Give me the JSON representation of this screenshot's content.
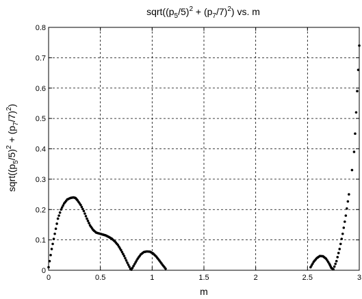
{
  "chart_data": {
    "type": "scatter",
    "title": {
      "base": "sqrt((p",
      "s1": "5",
      "m1": "/5)",
      "e1": "2",
      "m2": " + (p",
      "s2": "7",
      "m3": "/7)",
      "e2": "2",
      "tail": ") vs. m"
    },
    "xlabel": "m",
    "ylabel": {
      "base": "sqrt((p",
      "s1": "5",
      "m1": "/5)",
      "e1": "2",
      "m2": " + (p",
      "s2": "7",
      "m3": "/7)",
      "e2": "2",
      "tail": ")"
    },
    "xlim": [
      0,
      3
    ],
    "ylim": [
      0,
      0.8
    ],
    "xticks": [
      0,
      0.5,
      1,
      1.5,
      2,
      2.5,
      3
    ],
    "xtick_labels": [
      "0",
      "0.5",
      "1",
      "1.5",
      "2",
      "2.5",
      "3"
    ],
    "yticks": [
      0,
      0.1,
      0.2,
      0.3,
      0.4,
      0.5,
      0.6,
      0.7,
      0.8
    ],
    "ytick_labels": [
      "0",
      "0.1",
      "0.2",
      "0.3",
      "0.4",
      "0.5",
      "0.6",
      "0.7",
      "0.8"
    ],
    "grid": true,
    "marker_color": "#000000",
    "series": [
      {
        "marker": "dot",
        "x": [
          0.0,
          0.03,
          0.06,
          0.09,
          0.12,
          0.15,
          0.18,
          0.21,
          0.24,
          0.26,
          0.28,
          0.31,
          0.34,
          0.37,
          0.4,
          0.43,
          0.46,
          0.49,
          0.52,
          0.55,
          0.58,
          0.61,
          0.64,
          0.67,
          0.7,
          0.73,
          0.76,
          0.79,
          0.8,
          0.83,
          0.86,
          0.89,
          0.92,
          0.95,
          0.98,
          1.01,
          1.04,
          1.07,
          1.1,
          1.13,
          2.53,
          2.56,
          2.59,
          2.62,
          2.65,
          2.68,
          2.71,
          2.73,
          2.75,
          2.78,
          2.81,
          2.84,
          2.87,
          2.9,
          2.93,
          2.95,
          2.96,
          2.97,
          2.98,
          2.99,
          3.0
        ],
        "y": [
          0.01,
          0.07,
          0.12,
          0.17,
          0.2,
          0.22,
          0.233,
          0.238,
          0.24,
          0.238,
          0.23,
          0.215,
          0.195,
          0.17,
          0.148,
          0.133,
          0.124,
          0.121,
          0.118,
          0.115,
          0.11,
          0.104,
          0.095,
          0.083,
          0.066,
          0.047,
          0.025,
          0.005,
          0.002,
          0.02,
          0.038,
          0.052,
          0.06,
          0.062,
          0.061,
          0.055,
          0.045,
          0.032,
          0.018,
          0.005,
          0.01,
          0.028,
          0.04,
          0.047,
          0.046,
          0.038,
          0.022,
          0.008,
          0.003,
          0.03,
          0.07,
          0.12,
          0.18,
          0.25,
          0.33,
          0.39,
          0.45,
          0.52,
          0.59,
          0.66,
          0.74
        ]
      }
    ]
  }
}
